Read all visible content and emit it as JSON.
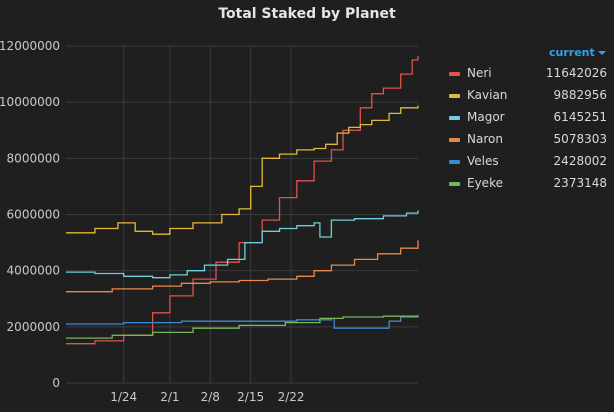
{
  "chart_data": {
    "type": "line",
    "title": "Total Staked by Planet",
    "x_ticks": [
      "1/24",
      "2/1",
      "2/8",
      "2/15",
      "2/22"
    ],
    "y_ticks": [
      "0",
      "2000000",
      "4000000",
      "6000000",
      "8000000",
      "10000000",
      "12000000"
    ],
    "ylim": [
      0,
      12000000
    ],
    "grid": true,
    "legend_placement": "right",
    "legend_header": "current",
    "series": [
      {
        "name": "Neri",
        "current": "11642026",
        "color": "#e0524a",
        "points": [
          [
            0,
            1400000
          ],
          [
            5,
            1500000
          ],
          [
            10,
            1700000
          ],
          [
            15,
            2500000
          ],
          [
            18,
            3100000
          ],
          [
            22,
            3700000
          ],
          [
            26,
            4300000
          ],
          [
            30,
            5000000
          ],
          [
            34,
            5800000
          ],
          [
            37,
            6600000
          ],
          [
            40,
            7200000
          ],
          [
            43,
            7900000
          ],
          [
            46,
            8300000
          ],
          [
            48,
            9000000
          ],
          [
            51,
            9800000
          ],
          [
            53,
            10300000
          ],
          [
            55,
            10500000
          ],
          [
            58,
            11000000
          ],
          [
            60,
            11500000
          ],
          [
            61,
            11642026
          ]
        ]
      },
      {
        "name": "Kavian",
        "current": "9882956",
        "color": "#e6b83a",
        "points": [
          [
            0,
            5350000
          ],
          [
            5,
            5500000
          ],
          [
            9,
            5700000
          ],
          [
            12,
            5400000
          ],
          [
            15,
            5300000
          ],
          [
            18,
            5500000
          ],
          [
            22,
            5700000
          ],
          [
            25,
            5700000
          ],
          [
            27,
            6000000
          ],
          [
            30,
            6200000
          ],
          [
            32,
            7000000
          ],
          [
            34,
            8000000
          ],
          [
            37,
            8150000
          ],
          [
            40,
            8300000
          ],
          [
            43,
            8350000
          ],
          [
            45,
            8500000
          ],
          [
            47,
            8900000
          ],
          [
            49,
            9100000
          ],
          [
            51,
            9200000
          ],
          [
            53,
            9350000
          ],
          [
            56,
            9600000
          ],
          [
            58,
            9800000
          ],
          [
            61,
            9882956
          ]
        ]
      },
      {
        "name": "Magor",
        "current": "6145251",
        "color": "#6dd0dc",
        "points": [
          [
            0,
            3950000
          ],
          [
            5,
            3900000
          ],
          [
            10,
            3800000
          ],
          [
            15,
            3750000
          ],
          [
            18,
            3850000
          ],
          [
            21,
            4000000
          ],
          [
            24,
            4200000
          ],
          [
            28,
            4400000
          ],
          [
            31,
            5000000
          ],
          [
            34,
            5400000
          ],
          [
            37,
            5500000
          ],
          [
            40,
            5600000
          ],
          [
            43,
            5700000
          ],
          [
            44,
            5200000
          ],
          [
            46,
            5800000
          ],
          [
            50,
            5850000
          ],
          [
            55,
            5950000
          ],
          [
            59,
            6050000
          ],
          [
            61,
            6145251
          ]
        ]
      },
      {
        "name": "Naron",
        "current": "5078303",
        "color": "#e8884a",
        "points": [
          [
            0,
            3250000
          ],
          [
            8,
            3350000
          ],
          [
            15,
            3450000
          ],
          [
            20,
            3550000
          ],
          [
            25,
            3600000
          ],
          [
            30,
            3650000
          ],
          [
            35,
            3700000
          ],
          [
            40,
            3800000
          ],
          [
            43,
            4000000
          ],
          [
            46,
            4200000
          ],
          [
            50,
            4400000
          ],
          [
            54,
            4600000
          ],
          [
            58,
            4800000
          ],
          [
            61,
            5078303
          ]
        ]
      },
      {
        "name": "Veles",
        "current": "2428002",
        "color": "#3b88d4",
        "points": [
          [
            0,
            2100000
          ],
          [
            10,
            2150000
          ],
          [
            20,
            2200000
          ],
          [
            30,
            2200000
          ],
          [
            40,
            2250000
          ],
          [
            46,
            2300000
          ],
          [
            46.5,
            1950000
          ],
          [
            55,
            1950000
          ],
          [
            56,
            2200000
          ],
          [
            58,
            2350000
          ],
          [
            61,
            2428002
          ]
        ]
      },
      {
        "name": "Eyeke",
        "current": "2373148",
        "color": "#74b85a",
        "points": [
          [
            0,
            1600000
          ],
          [
            8,
            1700000
          ],
          [
            15,
            1800000
          ],
          [
            22,
            1950000
          ],
          [
            30,
            2050000
          ],
          [
            38,
            2150000
          ],
          [
            44,
            2300000
          ],
          [
            48,
            2350000
          ],
          [
            55,
            2380000
          ],
          [
            61,
            2373148
          ]
        ]
      }
    ]
  }
}
